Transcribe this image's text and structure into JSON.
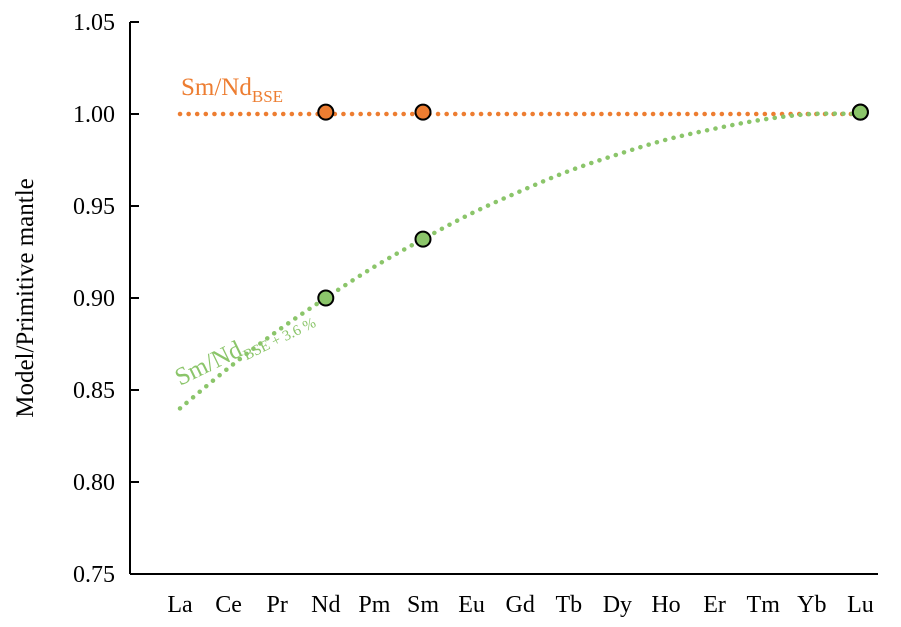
{
  "chart_data": {
    "type": "line",
    "ylabel": "Model/Primitive mantle",
    "xlabel": "",
    "ylim": [
      0.75,
      1.05
    ],
    "yticks": [
      "0.75",
      "0.80",
      "0.85",
      "0.90",
      "0.95",
      "1.00",
      "1.05"
    ],
    "categories": [
      "La",
      "Ce",
      "Pr",
      "Nd",
      "Pm",
      "Sm",
      "Eu",
      "Gd",
      "Tb",
      "Dy",
      "Ho",
      "Er",
      "Tm",
      "Yb",
      "Lu"
    ],
    "grid": false,
    "series": [
      {
        "name": "Sm/Nd BSE",
        "color": "#ED7D31",
        "line_style": "dotted",
        "line": {
          "x_start": "La",
          "x_end": "Lu",
          "values": [
            1.0,
            1.0,
            1.0,
            1.0,
            1.0,
            1.0,
            1.0,
            1.0,
            1.0,
            1.0,
            1.0,
            1.0,
            1.0,
            1.0,
            1.0
          ]
        },
        "points": [
          {
            "x": "Nd",
            "y": 1.001
          },
          {
            "x": "Sm",
            "y": 1.001
          },
          {
            "x": "Lu",
            "y": 1.001
          }
        ]
      },
      {
        "name": "Sm/Nd BSE + 3.6 %",
        "color": "#8BC56A",
        "line_style": "dotted",
        "line": {
          "x_start": "La",
          "x_end": "Lu",
          "values": [
            0.84,
            0.862,
            0.882,
            0.9,
            0.917,
            0.932,
            0.946,
            0.958,
            0.969,
            0.978,
            0.986,
            0.992,
            0.997,
            1.0,
            1.0
          ]
        },
        "points": [
          {
            "x": "Nd",
            "y": 0.9
          },
          {
            "x": "Sm",
            "y": 0.932
          },
          {
            "x": "Lu",
            "y": 1.001
          }
        ]
      }
    ],
    "annotations": {
      "orange": {
        "main": "Sm/Nd",
        "sub": "BSE"
      },
      "green": {
        "main": "Sm/Nd",
        "sub": "BSE + 3.6 %"
      }
    }
  }
}
